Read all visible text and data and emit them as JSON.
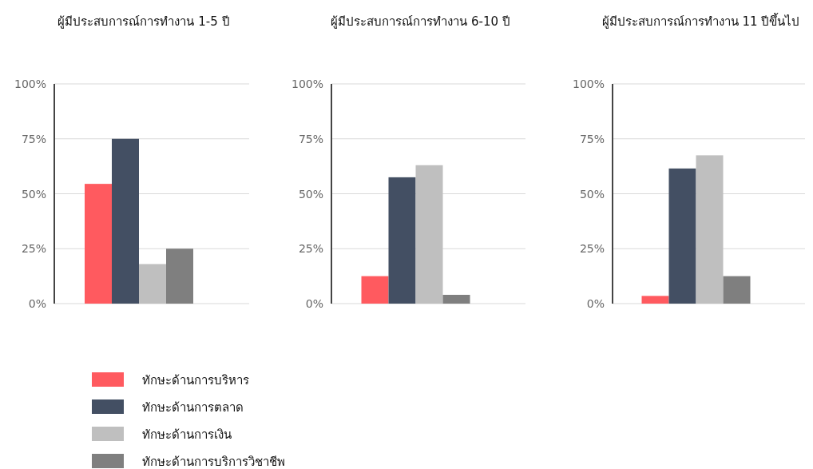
{
  "chart_data": [
    {
      "type": "bar",
      "title": "ผู้มีประสบการณ์การทำงาน 1-5 ปี",
      "categories": [
        null
      ],
      "ylim": [
        0,
        100
      ],
      "yticks": [
        {
          "value": 0,
          "label": "0%"
        },
        {
          "value": 25,
          "label": "25%"
        },
        {
          "value": 50,
          "label": "50%"
        },
        {
          "value": 75,
          "label": "75%"
        },
        {
          "value": 100,
          "label": "100%"
        }
      ],
      "grid": "y",
      "legend": "bottom",
      "series": [
        {
          "name": "ทักษะด้านการบริหาร",
          "color": "#ff5a5f",
          "values": [
            54.5
          ]
        },
        {
          "name": "ทักษะด้านการตลาด",
          "color": "#434f63",
          "values": [
            75
          ]
        },
        {
          "name": "ทักษะด้านการเงิน",
          "color": "#bfbfbf",
          "values": [
            18
          ]
        },
        {
          "name": "ทักษะด้านการบริการวิชาชีพ",
          "color": "#7f7f7f",
          "values": [
            25
          ]
        }
      ]
    },
    {
      "type": "bar",
      "title": "ผู้มีประสบการณ์การทำงาน 6-10 ปี",
      "categories": [
        null
      ],
      "ylim": [
        0,
        100
      ],
      "yticks": [
        {
          "value": 0,
          "label": "0%"
        },
        {
          "value": 25,
          "label": "25%"
        },
        {
          "value": 50,
          "label": "50%"
        },
        {
          "value": 75,
          "label": "75%"
        },
        {
          "value": 100,
          "label": "100%"
        }
      ],
      "grid": "y",
      "series": [
        {
          "color": "#ff5a5f",
          "values": [
            12.5
          ]
        },
        {
          "color": "#434f63",
          "values": [
            57.5
          ]
        },
        {
          "color": "#bfbfbf",
          "values": [
            63
          ]
        },
        {
          "color": "#7f7f7f",
          "values": [
            4
          ]
        }
      ]
    },
    {
      "type": "bar",
      "title": "ผู้มีประสบการณ์การทำงาน 11 ปีขึ้นไป",
      "categories": [
        null
      ],
      "ylim": [
        0,
        100
      ],
      "yticks": [
        {
          "value": 0,
          "label": "0%"
        },
        {
          "value": 25,
          "label": "25%"
        },
        {
          "value": 50,
          "label": "50%"
        },
        {
          "value": 75,
          "label": "75%"
        },
        {
          "value": 100,
          "label": "100%"
        }
      ],
      "grid": "y",
      "series": [
        {
          "color": "#ff5a5f",
          "values": [
            3.5
          ]
        },
        {
          "color": "#434f63",
          "values": [
            61.5
          ]
        },
        {
          "color": "#bfbfbf",
          "values": [
            67.5
          ]
        },
        {
          "color": "#7f7f7f",
          "values": [
            12.5
          ]
        }
      ]
    }
  ]
}
